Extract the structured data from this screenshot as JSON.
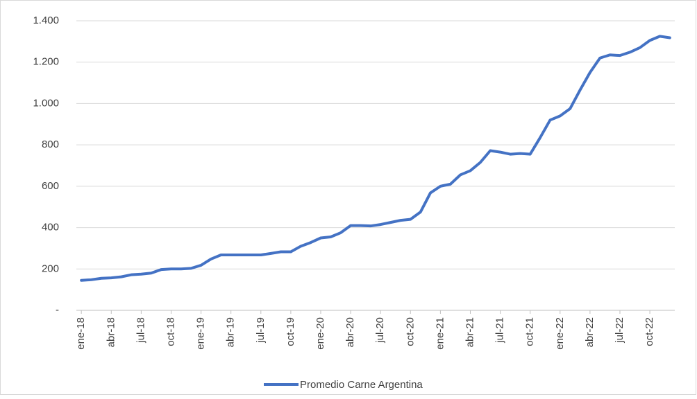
{
  "chart_data": {
    "type": "line",
    "categories": [
      "ene-18",
      null,
      null,
      "abr-18",
      null,
      null,
      "jul-18",
      null,
      null,
      "oct-18",
      null,
      null,
      "ene-19",
      null,
      null,
      "abr-19",
      null,
      null,
      "jul-19",
      null,
      null,
      "oct-19",
      null,
      null,
      "ene-20",
      null,
      null,
      "abr-20",
      null,
      null,
      "jul-20",
      null,
      null,
      "oct-20",
      null,
      null,
      "ene-21",
      null,
      null,
      "abr-21",
      null,
      null,
      "jul-21",
      null,
      null,
      "oct-21",
      null,
      null,
      "ene-22",
      null,
      null,
      "abr-22",
      null,
      null,
      "jul-22",
      null,
      null,
      "oct-22",
      null,
      null
    ],
    "series": [
      {
        "name": "Promedio Carne Argentina",
        "color": "#4472c4",
        "values": [
          145,
          148,
          155,
          157,
          162,
          172,
          175,
          180,
          197,
          200,
          200,
          203,
          218,
          248,
          268,
          268,
          268,
          268,
          268,
          275,
          283,
          283,
          310,
          328,
          350,
          355,
          375,
          410,
          410,
          408,
          415,
          425,
          435,
          440,
          475,
          568,
          600,
          610,
          655,
          675,
          715,
          772,
          765,
          755,
          758,
          755,
          835,
          920,
          940,
          975,
          1065,
          1150,
          1220,
          1235,
          1232,
          1248,
          1270,
          1305,
          1325,
          1318
        ]
      }
    ],
    "ylim": [
      0,
      1400
    ],
    "yticks": [
      {
        "value": 0,
        "label": "-"
      },
      200,
      400,
      600,
      800,
      {
        "value": 1000,
        "label": "1.000"
      },
      {
        "value": 1200,
        "label": "1.200"
      },
      {
        "value": 1400,
        "label": "1.400"
      }
    ],
    "grid": true,
    "legend": "bottom"
  }
}
